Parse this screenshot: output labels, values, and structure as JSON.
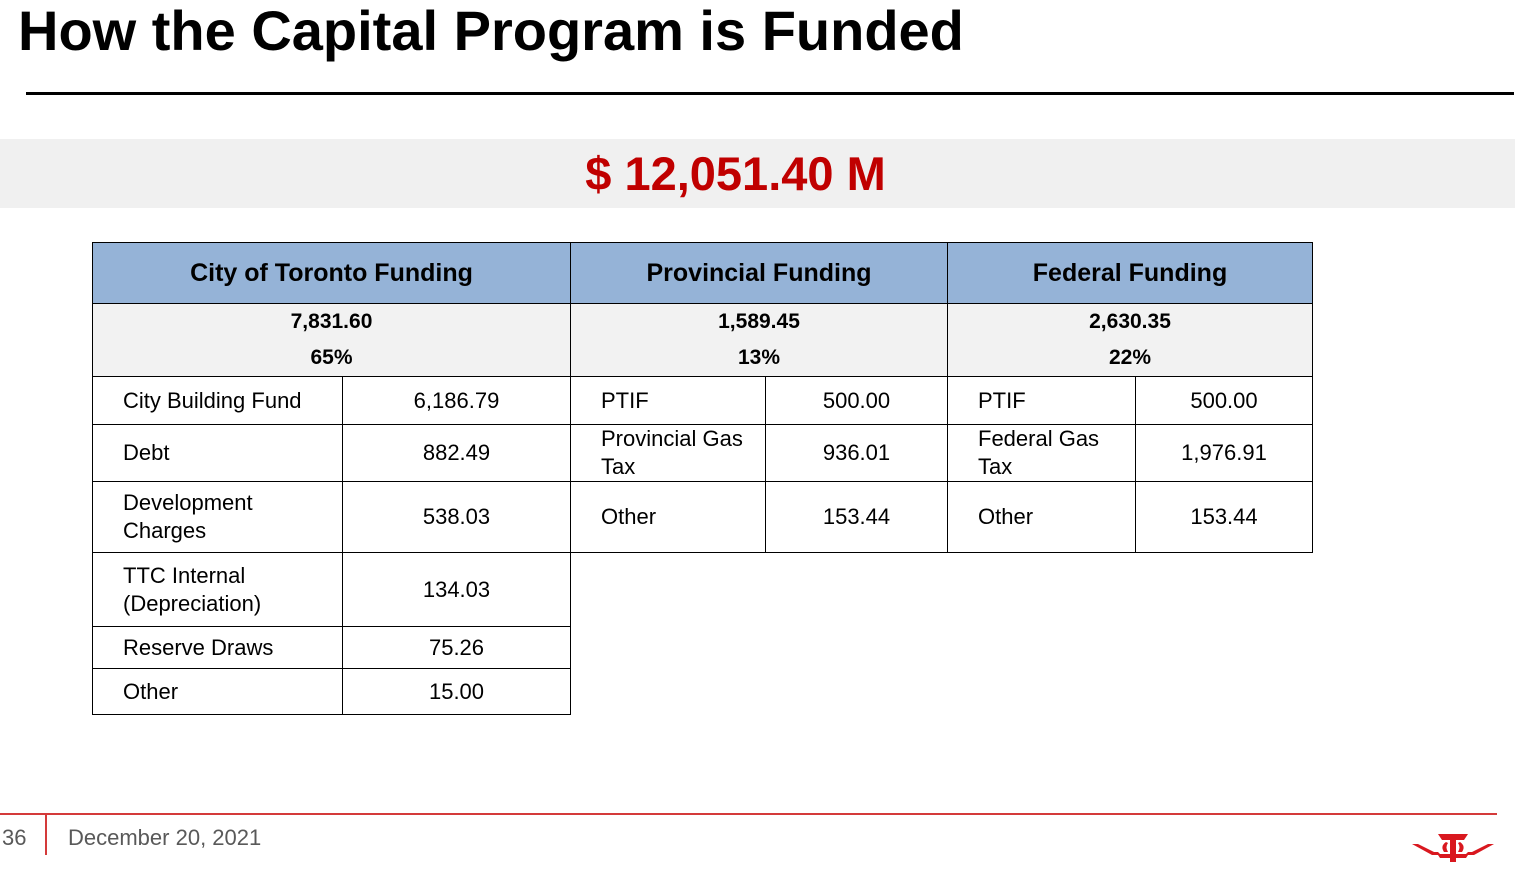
{
  "slide": {
    "title": "How the Capital Program is Funded",
    "total": "$ 12,051.40 M",
    "page_number": "36",
    "date": "December 20, 2021",
    "accent_color": "#c00000",
    "header_color": "#95b3d7",
    "logo_icon": "ttc-logo-icon"
  },
  "table": {
    "headers": [
      "City of Toronto Funding",
      "Provincial Funding",
      "Federal Funding"
    ],
    "summaries": [
      {
        "amount": "7,831.60",
        "percent": "65%"
      },
      {
        "amount": "1,589.45",
        "percent": "13%"
      },
      {
        "amount": "2,630.35",
        "percent": "22%"
      }
    ],
    "city_rows": [
      {
        "label": "City Building Fund",
        "value": "6,186.79"
      },
      {
        "label": "Debt",
        "value": "882.49"
      },
      {
        "label": "Development Charges",
        "value": "538.03"
      },
      {
        "label": "TTC Internal (Depreciation)",
        "value": "134.03"
      },
      {
        "label": "Reserve Draws",
        "value": "75.26"
      },
      {
        "label": "Other",
        "value": "15.00"
      }
    ],
    "provincial_rows": [
      {
        "label": "PTIF",
        "value": "500.00"
      },
      {
        "label": "Provincial Gas Tax",
        "value": "936.01"
      },
      {
        "label": "Other",
        "value": "153.44"
      }
    ],
    "federal_rows": [
      {
        "label": "PTIF",
        "value": "500.00"
      },
      {
        "label": "Federal Gas Tax",
        "value": "1,976.91"
      },
      {
        "label": "Other",
        "value": "153.44"
      }
    ]
  }
}
